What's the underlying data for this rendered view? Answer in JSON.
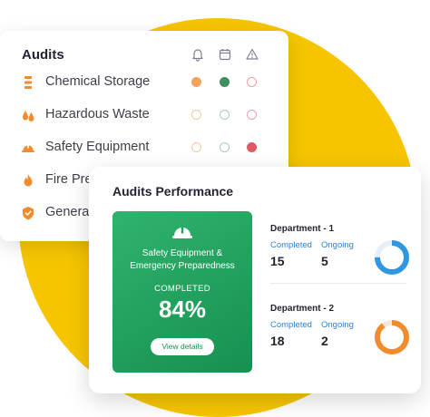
{
  "audits": {
    "title": "Audits",
    "column_icons": [
      "bell-icon",
      "calendar-icon",
      "warning-icon"
    ],
    "rows": [
      {
        "icon": "chemical-storage-icon",
        "label": "Chemical Storage",
        "status": [
          "filled-orange",
          "filled-green",
          "ring-red"
        ]
      },
      {
        "icon": "hazardous-waste-icon",
        "label": "Hazardous Waste",
        "status": [
          "ring-orange",
          "ring-green",
          "ring-red"
        ]
      },
      {
        "icon": "safety-equipment-icon",
        "label": "Safety Equipment",
        "status": [
          "ring-orange",
          "ring-green",
          "filled-red"
        ]
      },
      {
        "icon": "fire-icon",
        "label": "Fire Prev",
        "status": []
      },
      {
        "icon": "shield-icon",
        "label": "General",
        "status": []
      }
    ]
  },
  "performance": {
    "title": "Audits Performance",
    "highlight": {
      "icon": "helmet-icon",
      "name": "Safety Equipment & Emergency Preparedness",
      "completed_label": "COMPLETED",
      "completed_value": "84%",
      "button_label": "View details"
    },
    "departments": [
      {
        "name": "Department - 1",
        "completed_label": "Completed",
        "completed": "15",
        "ongoing_label": "Ongoing",
        "ongoing": "5",
        "color": "#2f96e0",
        "fraction": 0.75
      },
      {
        "name": "Department - 2",
        "completed_label": "Completed",
        "completed": "18",
        "ongoing_label": "Ongoing",
        "ongoing": "2",
        "color": "#f08c2e",
        "fraction": 0.9
      }
    ]
  },
  "colors": {
    "background_disc": "#f6c500",
    "accent_orange": "#f08c2e",
    "accent_blue": "#2f96e0",
    "card_green": "#22a15d"
  }
}
